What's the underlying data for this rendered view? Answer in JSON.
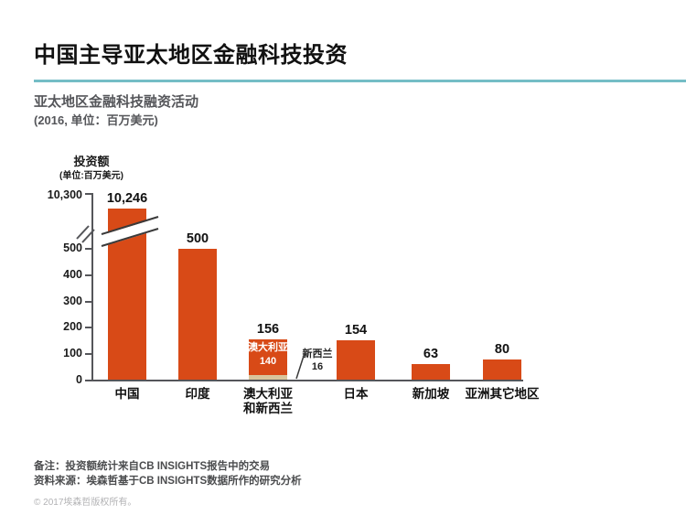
{
  "header": {
    "title": "中国主导亚太地区金融科技投资",
    "subtitle_line1": "亚太地区金融科技融资活动",
    "subtitle_line2": "(2016, 单位：百万美元)"
  },
  "chart_data": {
    "type": "bar",
    "title": "亚太地区金融科技融资活动",
    "year": "2016",
    "unit": "百万美元",
    "ylabel": "投资额",
    "ylabel_unit": "(单位:百万美元)",
    "yticks": [
      0,
      100,
      200,
      300,
      400,
      500
    ],
    "ytick_labels": [
      "0",
      "100",
      "200",
      "300",
      "400",
      "500"
    ],
    "ytick_top_label": "10,300",
    "axis_break": true,
    "grid": false,
    "legend": false,
    "bar_color": "#d84a17",
    "secondary_color": "#d9c59c",
    "accent_rule_color": "#74bdc6",
    "bars": [
      {
        "key": "china",
        "label_lines": [
          "中国"
        ],
        "value": 10246,
        "value_label": "10,246",
        "clipped": true
      },
      {
        "key": "india",
        "label_lines": [
          "印度"
        ],
        "value": 500,
        "value_label": "500"
      },
      {
        "key": "australia-nz",
        "label_lines": [
          "澳大利亚",
          "和新西兰"
        ],
        "value": 156,
        "value_label": "156",
        "segments": [
          {
            "name": "澳大利亚",
            "value": 140,
            "in_bar_lines": [
              "澳大利亚",
              "140"
            ]
          },
          {
            "name": "新西兰",
            "value": 16,
            "callout_lines": [
              "新西兰",
              "16"
            ]
          }
        ]
      },
      {
        "key": "japan",
        "label_lines": [
          "日本"
        ],
        "value": 154,
        "value_label": "154"
      },
      {
        "key": "singapore",
        "label_lines": [
          "新加坡"
        ],
        "value": 63,
        "value_label": "63"
      },
      {
        "key": "other-asia",
        "label_lines": [
          "亚洲其它地区"
        ],
        "value": 80,
        "value_label": "80"
      }
    ]
  },
  "footer": {
    "note": "备注：投资额统计来自CB INSIGHTS报告中的交易",
    "source": "资料来源：埃森哲基于CB INSIGHTS数据所作的研究分析",
    "copyright": "© 2017埃森哲版权所有。"
  }
}
